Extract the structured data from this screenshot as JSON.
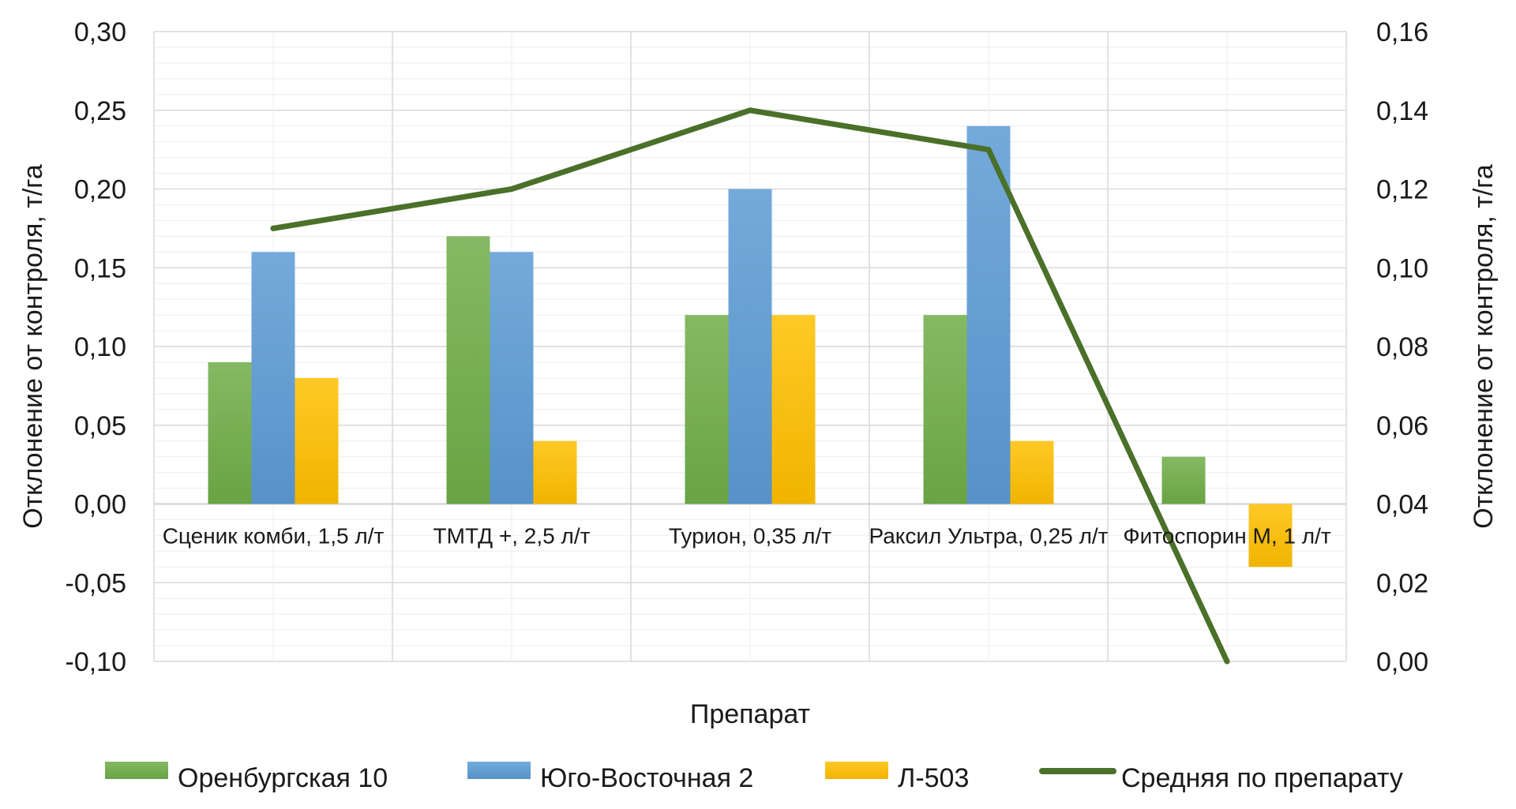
{
  "chart_data": {
    "type": "bar",
    "categories": [
      "Сценик комби, 1,5 л/т",
      "ТМТД +, 2,5 л/т",
      "Турион, 0,35 л/т",
      "Раксил Ультра, 0,25 л/т",
      "Фитоспорин М, 1 л/т"
    ],
    "series": [
      {
        "name": "Оренбургская 10",
        "kind": "bar",
        "axis": "left",
        "color": "#70ad47",
        "values": [
          0.09,
          0.17,
          0.12,
          0.12,
          0.03
        ]
      },
      {
        "name": "Юго-Восточная 2",
        "kind": "bar",
        "axis": "left",
        "color": "#5b9bd5",
        "values": [
          0.16,
          0.16,
          0.2,
          0.24,
          0.0
        ]
      },
      {
        "name": "Л-503",
        "kind": "bar",
        "axis": "left",
        "color": "#ffc000",
        "values": [
          0.08,
          0.04,
          0.12,
          0.04,
          -0.04
        ]
      },
      {
        "name": "Средняя по препарату",
        "kind": "line",
        "axis": "right",
        "color": "#4a7029",
        "values": [
          0.11,
          0.12,
          0.14,
          0.13,
          0.0
        ]
      }
    ],
    "xlabel": "Препарат",
    "ylabel": "Отклонение от контроля, т/га",
    "y2label": "Отклонение от контроля, т/га",
    "ylim": [
      -0.1,
      0.3
    ],
    "y2lim": [
      0.0,
      0.16
    ],
    "yticks": [
      "-0,10",
      "-0,05",
      "0,00",
      "0,05",
      "0,10",
      "0,15",
      "0,20",
      "0,25",
      "0,30"
    ],
    "y2ticks": [
      "0,00",
      "0,02",
      "0,04",
      "0,06",
      "0,08",
      "0,10",
      "0,12",
      "0,14",
      "0,16"
    ],
    "grid": true,
    "legend_position": "bottom"
  }
}
